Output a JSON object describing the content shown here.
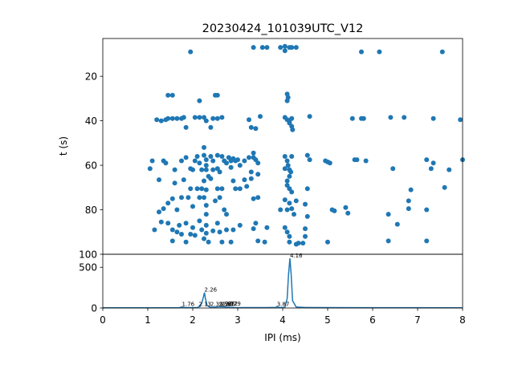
{
  "chart_data": [
    {
      "type": "scatter",
      "title": "20230424_101039UTC_V12",
      "xlabel": "",
      "ylabel": "t (s)",
      "xlim": [
        0,
        8
      ],
      "ylim": [
        100,
        3
      ],
      "y_inverted": true,
      "yticks": [
        20,
        40,
        60,
        80,
        100
      ],
      "grid": false,
      "color": "#1f77b4",
      "series": [
        {
          "points": [
            [
              1.95,
              9
            ],
            [
              3.35,
              7
            ],
            [
              3.55,
              7
            ],
            [
              3.65,
              7
            ],
            [
              3.95,
              7
            ],
            [
              4.05,
              6.5
            ],
            [
              4.15,
              7
            ],
            [
              4.2,
              7
            ],
            [
              4.3,
              7
            ],
            [
              4.05,
              8.5
            ],
            [
              5.75,
              9
            ],
            [
              6.15,
              9
            ],
            [
              7.55,
              9
            ],
            [
              1.45,
              28.5
            ],
            [
              1.55,
              28.5
            ],
            [
              2.15,
              31
            ],
            [
              2.5,
              28.5
            ],
            [
              2.55,
              28.5
            ],
            [
              4.1,
              28
            ],
            [
              4.12,
              29.5
            ],
            [
              4.1,
              31
            ],
            [
              1.2,
              39.5
            ],
            [
              1.3,
              40
            ],
            [
              1.4,
              39.5
            ],
            [
              1.45,
              39
            ],
            [
              1.55,
              39
            ],
            [
              1.65,
              39
            ],
            [
              1.75,
              39
            ],
            [
              1.8,
              38.5
            ],
            [
              1.85,
              43
            ],
            [
              2.05,
              38.5
            ],
            [
              2.15,
              38.5
            ],
            [
              2.25,
              38.5
            ],
            [
              2.3,
              40
            ],
            [
              2.4,
              43
            ],
            [
              2.45,
              39
            ],
            [
              2.55,
              39
            ],
            [
              2.65,
              38.5
            ],
            [
              3.25,
              39.5
            ],
            [
              3.3,
              43
            ],
            [
              3.4,
              43.5
            ],
            [
              3.5,
              38
            ],
            [
              4.05,
              38.5
            ],
            [
              4.1,
              39.5
            ],
            [
              4.15,
              40
            ],
            [
              4.2,
              39
            ],
            [
              4.15,
              41
            ],
            [
              4.2,
              42.5
            ],
            [
              4.22,
              44
            ],
            [
              4.6,
              38
            ],
            [
              5.55,
              39
            ],
            [
              5.75,
              39
            ],
            [
              5.8,
              39
            ],
            [
              6.4,
              38.5
            ],
            [
              6.7,
              38.5
            ],
            [
              7.35,
              39
            ],
            [
              7.95,
              39.5
            ],
            [
              1.1,
              58
            ],
            [
              1.05,
              61.5
            ],
            [
              1.35,
              58
            ],
            [
              1.4,
              59
            ],
            [
              1.25,
              66.5
            ],
            [
              1.6,
              62
            ],
            [
              1.75,
              58
            ],
            [
              1.85,
              56.5
            ],
            [
              1.95,
              61.5
            ],
            [
              2.0,
              62
            ],
            [
              2.05,
              58
            ],
            [
              2.1,
              56
            ],
            [
              2.15,
              59
            ],
            [
              2.2,
              62
            ],
            [
              2.25,
              52
            ],
            [
              2.25,
              55.5
            ],
            [
              2.3,
              57.5
            ],
            [
              2.3,
              60
            ],
            [
              2.3,
              62
            ],
            [
              2.35,
              65
            ],
            [
              2.4,
              56
            ],
            [
              2.45,
              58
            ],
            [
              2.45,
              62
            ],
            [
              2.55,
              55.5
            ],
            [
              2.55,
              61.5
            ],
            [
              2.6,
              63
            ],
            [
              2.65,
              56
            ],
            [
              2.7,
              58
            ],
            [
              2.75,
              59
            ],
            [
              2.8,
              56.5
            ],
            [
              2.85,
              58
            ],
            [
              2.85,
              61
            ],
            [
              2.9,
              57
            ],
            [
              2.95,
              58
            ],
            [
              3.0,
              57.5
            ],
            [
              3.05,
              60
            ],
            [
              3.15,
              58
            ],
            [
              3.25,
              56.5
            ],
            [
              3.3,
              63
            ],
            [
              3.35,
              56.5
            ],
            [
              3.4,
              57.5
            ],
            [
              3.45,
              59
            ],
            [
              3.45,
              64
            ],
            [
              3.35,
              54.5
            ],
            [
              4.05,
              56
            ],
            [
              4.1,
              58
            ],
            [
              4.12,
              60
            ],
            [
              4.15,
              62
            ],
            [
              4.18,
              63
            ],
            [
              4.15,
              65
            ],
            [
              4.1,
              67
            ],
            [
              4.2,
              56
            ],
            [
              4.05,
              61.5
            ],
            [
              4.55,
              55.5
            ],
            [
              4.6,
              57.5
            ],
            [
              4.95,
              58
            ],
            [
              5.0,
              58.5
            ],
            [
              5.05,
              59
            ],
            [
              5.6,
              57.5
            ],
            [
              5.65,
              57.5
            ],
            [
              5.85,
              58
            ],
            [
              6.45,
              61.5
            ],
            [
              7.2,
              57.5
            ],
            [
              7.3,
              61.5
            ],
            [
              7.35,
              59
            ],
            [
              7.7,
              62
            ],
            [
              8.0,
              57.5
            ],
            [
              1.6,
              68
            ],
            [
              1.8,
              66.5
            ],
            [
              1.95,
              70.5
            ],
            [
              2.1,
              70.5
            ],
            [
              2.2,
              70.5
            ],
            [
              2.25,
              67
            ],
            [
              2.3,
              71
            ],
            [
              2.4,
              66
            ],
            [
              2.55,
              70.5
            ],
            [
              2.65,
              70.5
            ],
            [
              2.9,
              67
            ],
            [
              2.95,
              70.5
            ],
            [
              3.05,
              70.5
            ],
            [
              3.15,
              66.5
            ],
            [
              3.2,
              69.5
            ],
            [
              3.3,
              66
            ],
            [
              4.1,
              69
            ],
            [
              4.15,
              70.5
            ],
            [
              4.2,
              72
            ],
            [
              4.55,
              70.5
            ],
            [
              6.85,
              71
            ],
            [
              7.6,
              70
            ],
            [
              1.25,
              81
            ],
            [
              1.35,
              79.5
            ],
            [
              1.45,
              77
            ],
            [
              1.55,
              75
            ],
            [
              1.65,
              80
            ],
            [
              1.75,
              74.5
            ],
            [
              1.9,
              74.5
            ],
            [
              2.0,
              78.5
            ],
            [
              2.15,
              74.5
            ],
            [
              2.25,
              74.5
            ],
            [
              2.3,
              78
            ],
            [
              2.3,
              82
            ],
            [
              2.5,
              76
            ],
            [
              2.6,
              74.5
            ],
            [
              2.7,
              80
            ],
            [
              2.75,
              82
            ],
            [
              3.35,
              75
            ],
            [
              3.45,
              74.5
            ],
            [
              3.95,
              80
            ],
            [
              4.05,
              75.5
            ],
            [
              4.1,
              80
            ],
            [
              4.15,
              77
            ],
            [
              4.2,
              79.5
            ],
            [
              4.25,
              82
            ],
            [
              4.3,
              76
            ],
            [
              4.5,
              77.5
            ],
            [
              4.55,
              83
            ],
            [
              5.1,
              80
            ],
            [
              5.15,
              80.5
            ],
            [
              5.4,
              79
            ],
            [
              5.45,
              81.5
            ],
            [
              6.35,
              82
            ],
            [
              6.8,
              76
            ],
            [
              6.8,
              79.5
            ],
            [
              7.2,
              80
            ],
            [
              1.15,
              89
            ],
            [
              1.3,
              85.5
            ],
            [
              1.45,
              86
            ],
            [
              1.55,
              89
            ],
            [
              1.55,
              94
            ],
            [
              1.65,
              90
            ],
            [
              1.7,
              87
            ],
            [
              1.75,
              91
            ],
            [
              1.85,
              86
            ],
            [
              1.85,
              94.5
            ],
            [
              1.95,
              91
            ],
            [
              2.0,
              88
            ],
            [
              2.05,
              91.5
            ],
            [
              2.15,
              85
            ],
            [
              2.2,
              89
            ],
            [
              2.25,
              93
            ],
            [
              2.3,
              87
            ],
            [
              2.3,
              90.5
            ],
            [
              2.35,
              94.5
            ],
            [
              2.45,
              89.5
            ],
            [
              2.55,
              86
            ],
            [
              2.6,
              90
            ],
            [
              2.65,
              94.5
            ],
            [
              2.75,
              89
            ],
            [
              2.85,
              94.5
            ],
            [
              2.9,
              89
            ],
            [
              3.05,
              87
            ],
            [
              3.35,
              88.5
            ],
            [
              3.4,
              86
            ],
            [
              3.45,
              94
            ],
            [
              3.6,
              94.5
            ],
            [
              3.65,
              88
            ],
            [
              4.05,
              88
            ],
            [
              4.1,
              90
            ],
            [
              4.15,
              92
            ],
            [
              4.15,
              94.5
            ],
            [
              4.3,
              95.5
            ],
            [
              4.35,
              95
            ],
            [
              4.45,
              95
            ],
            [
              4.5,
              88.5
            ],
            [
              4.5,
              92
            ],
            [
              5.0,
              94.5
            ],
            [
              6.35,
              94
            ],
            [
              6.55,
              86.5
            ],
            [
              7.2,
              94
            ]
          ]
        }
      ]
    },
    {
      "type": "line",
      "title": "",
      "xlabel": "IPI (ms)",
      "ylabel": "",
      "xlim": [
        0,
        8
      ],
      "ylim": [
        0,
        660
      ],
      "xticks": [
        0,
        1,
        2,
        3,
        4,
        5,
        6,
        7,
        8
      ],
      "yticks": [
        0,
        500
      ],
      "grid": false,
      "color": "#1f77b4",
      "series": [
        {
          "x": [
            0,
            1.0,
            1.7,
            1.76,
            1.82,
            2.1,
            2.16,
            2.2,
            2.24,
            2.26,
            2.28,
            2.32,
            2.36,
            2.4,
            2.6,
            2.72,
            2.84,
            3.0,
            3.6,
            3.85,
            3.87,
            3.92,
            4.05,
            4.1,
            4.13,
            4.16,
            4.19,
            4.22,
            4.3,
            4.5,
            5.0,
            6.0,
            7.0,
            8.0
          ],
          "y": [
            3,
            3,
            4,
            14,
            5,
            6,
            20,
            60,
            140,
            190,
            120,
            30,
            18,
            8,
            16,
            12,
            8,
            5,
            5,
            8,
            18,
            6,
            8,
            120,
            420,
            610,
            400,
            90,
            12,
            6,
            5,
            4,
            4,
            3
          ]
        }
      ],
      "annotations": [
        {
          "text": "1.76",
          "x": 1.76,
          "y": 14
        },
        {
          "text": "2.13",
          "x": 2.13,
          "y": 14
        },
        {
          "text": "2.26",
          "x": 2.26,
          "y": 190
        },
        {
          "text": "2.39",
          "x": 2.39,
          "y": 14
        },
        {
          "text": "2.58",
          "x": 2.58,
          "y": 14
        },
        {
          "text": "2.63",
          "x": 2.63,
          "y": 14
        },
        {
          "text": "2.66",
          "x": 2.66,
          "y": 14
        },
        {
          "text": "2.72",
          "x": 2.72,
          "y": 20
        },
        {
          "text": "2.79",
          "x": 2.79,
          "y": 20
        },
        {
          "text": "3.87",
          "x": 3.87,
          "y": 14
        },
        {
          "text": "4.16",
          "x": 4.16,
          "y": 610
        }
      ]
    }
  ]
}
